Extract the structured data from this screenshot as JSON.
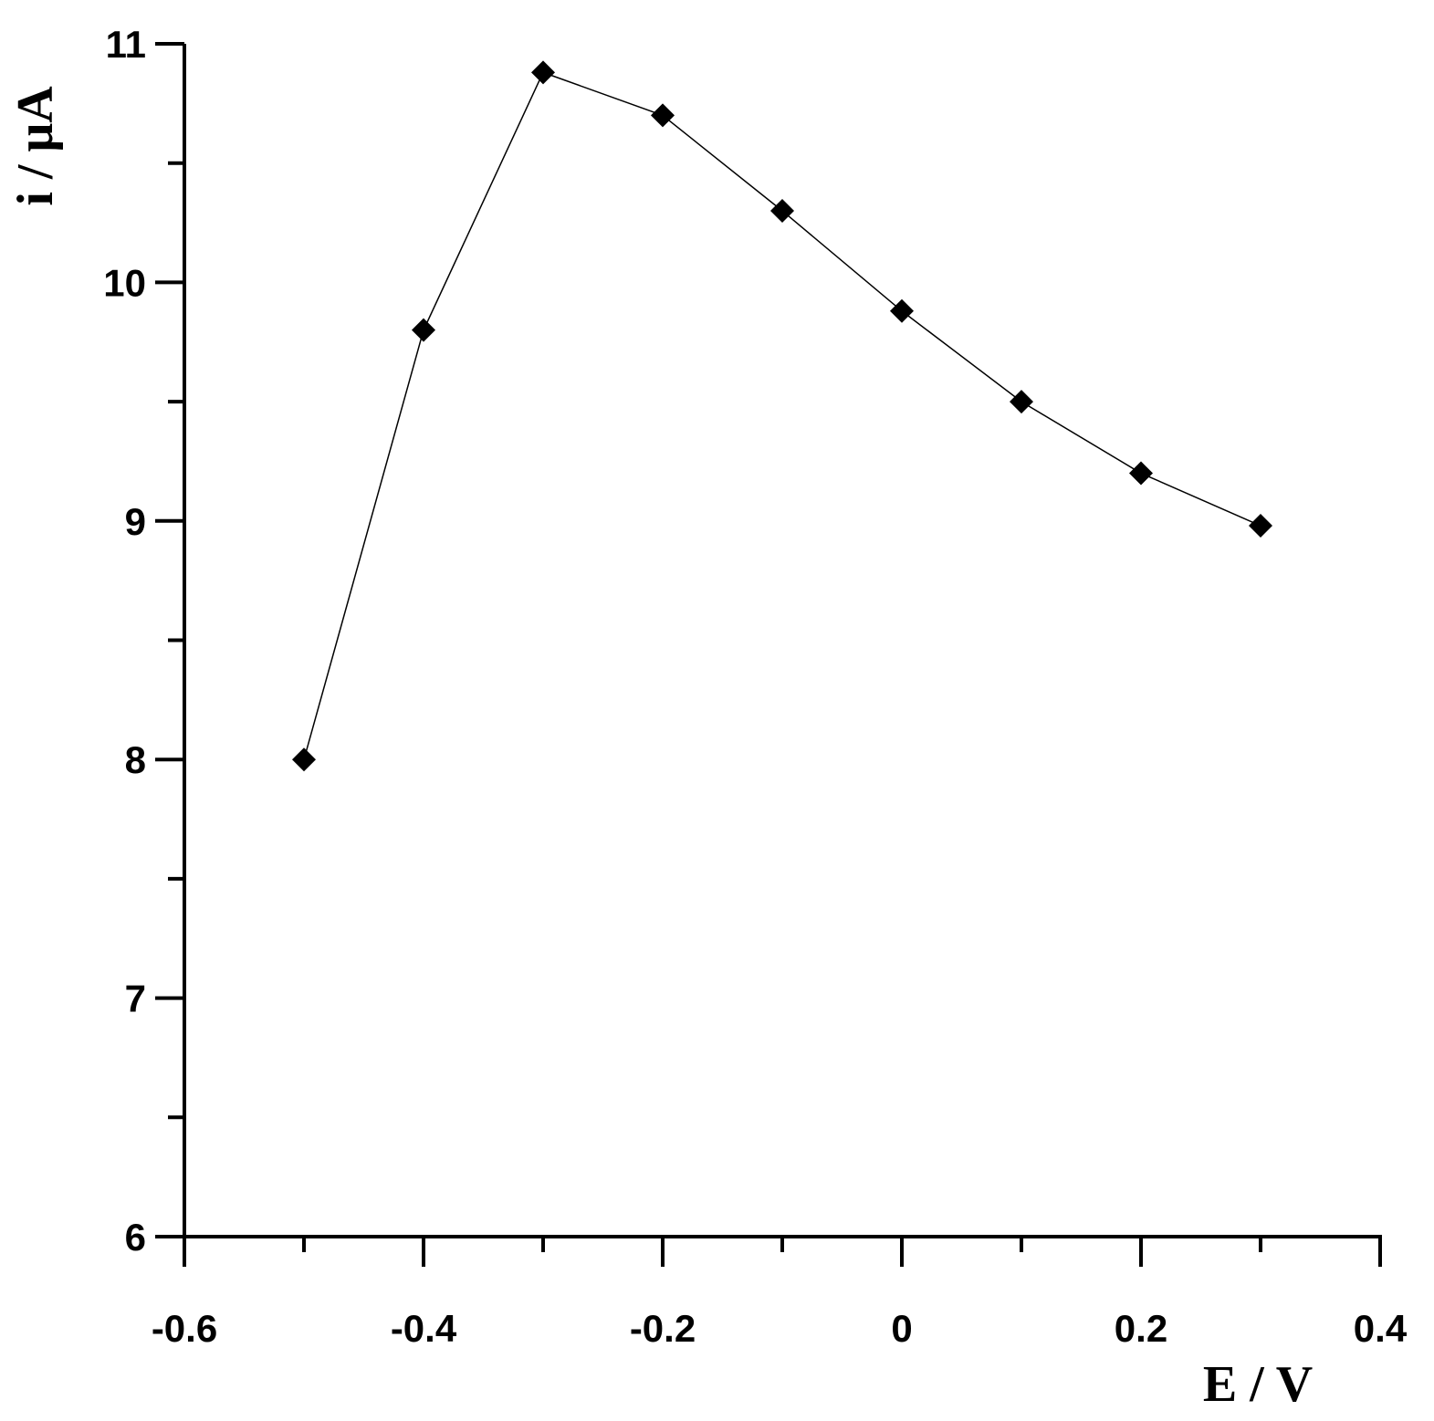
{
  "chart_data": {
    "type": "line",
    "x_label": "E / V",
    "y_label": "i / μA",
    "x": [
      -0.5,
      -0.4,
      -0.3,
      -0.2,
      -0.1,
      0,
      0.1,
      0.2,
      0.3
    ],
    "series": [
      {
        "color": "#000000",
        "values": [
          8.0,
          9.8,
          10.88,
          10.7,
          10.3,
          9.88,
          9.5,
          9.2,
          8.98
        ]
      }
    ],
    "xlim": [
      -0.6,
      0.4
    ],
    "xticks": [
      -0.6,
      -0.4,
      -0.2,
      0,
      0.2,
      0.4
    ],
    "x_minor_ticks": [
      -0.5,
      -0.3,
      -0.1,
      0.1,
      0.3
    ],
    "ylim": [
      6,
      11
    ],
    "yticks": [
      6,
      7,
      8,
      9,
      10,
      11
    ],
    "y_minor_ticks": [
      6.5,
      7.5,
      8.5,
      9.5,
      10.5
    ],
    "grid": false,
    "marker": "diamond"
  }
}
